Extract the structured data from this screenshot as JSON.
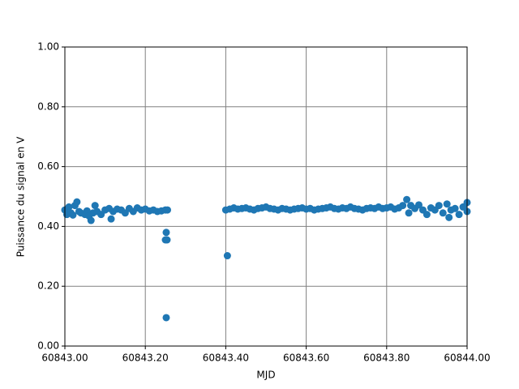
{
  "chart_data": {
    "type": "scatter",
    "xlabel": "MJD",
    "ylabel": "Puissance du signal en V",
    "color": "#1f77b4",
    "grid": true,
    "xlim": [
      60843,
      60844
    ],
    "xticks": [
      {
        "value": 60843,
        "label": "60843.00"
      },
      {
        "value": 60843.2,
        "label": "60843.20"
      },
      {
        "value": 60843.4,
        "label": "60843.40"
      },
      {
        "value": 60843.6,
        "label": "60843.60"
      },
      {
        "value": 60843.8,
        "label": "60843.80"
      },
      {
        "value": 60844,
        "label": "60844.00"
      }
    ],
    "ylim": [
      0,
      1
    ],
    "yticks": [
      {
        "value": 0,
        "label": "0.00"
      },
      {
        "value": 0.2,
        "label": "0.20"
      },
      {
        "value": 0.4,
        "label": "0.40"
      },
      {
        "value": 0.6,
        "label": "0.60"
      },
      {
        "value": 0.8,
        "label": "0.80"
      },
      {
        "value": 1,
        "label": "1.00"
      }
    ],
    "x": [
      60843.0,
      60843.005,
      60843.01,
      60843.015,
      60843.02,
      60843.025,
      60843.03,
      60843.035,
      60843.04,
      60843.05,
      60843.055,
      60843.06,
      60843.065,
      60843.07,
      60843.075,
      60843.08,
      60843.09,
      60843.1,
      60843.11,
      60843.115,
      60843.12,
      60843.13,
      60843.14,
      60843.15,
      60843.16,
      60843.17,
      60843.18,
      60843.19,
      60843.2,
      60843.21,
      60843.22,
      60843.23,
      60843.24,
      60843.25,
      60843.255,
      60843.252,
      60843.25,
      60843.254,
      60843.252,
      60843.404,
      60843.4,
      60843.41,
      60843.42,
      60843.43,
      60843.44,
      60843.45,
      60843.46,
      60843.47,
      60843.48,
      60843.49,
      60843.5,
      60843.51,
      60843.52,
      60843.53,
      60843.54,
      60843.55,
      60843.56,
      60843.57,
      60843.58,
      60843.59,
      60843.6,
      60843.61,
      60843.62,
      60843.63,
      60843.64,
      60843.65,
      60843.66,
      60843.67,
      60843.68,
      60843.69,
      60843.7,
      60843.71,
      60843.72,
      60843.73,
      60843.74,
      60843.75,
      60843.76,
      60843.77,
      60843.78,
      60843.79,
      60843.8,
      60843.81,
      60843.82,
      60843.83,
      60843.84,
      60843.85,
      60843.855,
      60843.86,
      60843.87,
      60843.88,
      60843.89,
      60843.9,
      60843.91,
      60843.92,
      60843.93,
      60843.94,
      60843.95,
      60843.955,
      60843.96,
      60843.97,
      60843.98,
      60843.99,
      60844.0,
      60844.0
    ],
    "values": [
      0.455,
      0.44,
      0.465,
      0.445,
      0.438,
      0.47,
      0.482,
      0.45,
      0.445,
      0.44,
      0.452,
      0.435,
      0.42,
      0.445,
      0.47,
      0.45,
      0.44,
      0.455,
      0.46,
      0.425,
      0.45,
      0.458,
      0.455,
      0.445,
      0.46,
      0.45,
      0.462,
      0.455,
      0.458,
      0.452,
      0.455,
      0.45,
      0.452,
      0.455,
      0.455,
      0.38,
      0.355,
      0.355,
      0.095,
      0.302,
      0.455,
      0.458,
      0.462,
      0.458,
      0.46,
      0.462,
      0.458,
      0.455,
      0.46,
      0.462,
      0.465,
      0.46,
      0.458,
      0.455,
      0.46,
      0.458,
      0.455,
      0.458,
      0.46,
      0.462,
      0.458,
      0.46,
      0.455,
      0.458,
      0.46,
      0.462,
      0.465,
      0.46,
      0.458,
      0.462,
      0.46,
      0.465,
      0.46,
      0.458,
      0.455,
      0.46,
      0.462,
      0.46,
      0.465,
      0.46,
      0.462,
      0.465,
      0.458,
      0.462,
      0.47,
      0.49,
      0.445,
      0.47,
      0.46,
      0.472,
      0.455,
      0.44,
      0.462,
      0.455,
      0.47,
      0.445,
      0.475,
      0.43,
      0.455,
      0.46,
      0.44,
      0.465,
      0.48,
      0.45
    ]
  }
}
